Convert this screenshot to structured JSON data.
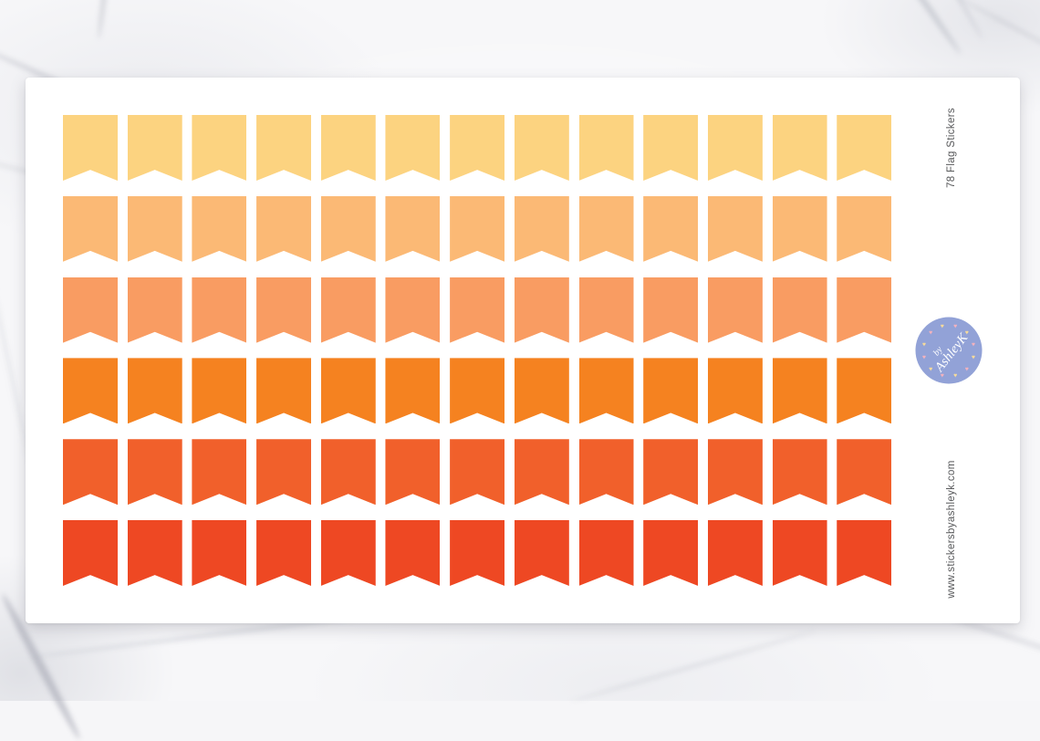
{
  "sheet": {
    "title": "78 Flag Stickers",
    "website": "www.stickersbyashleyk.com",
    "text_color": "#58595B",
    "background": "#FFFFFF"
  },
  "logo": {
    "prefix": "by",
    "name": "AshleyK",
    "circle_color": "#92A2D7",
    "text_color": "#FFFFFF",
    "heart_glyph": "♥",
    "heart_count": 12,
    "heart_colors": [
      "#F6DB9B",
      "#F3B2BE"
    ]
  },
  "stickers": {
    "shape": "flag",
    "columns": 13,
    "rows": 6,
    "total": 78,
    "row_colors": [
      "#FCD380",
      "#FBB975",
      "#F99C62",
      "#F58220",
      "#F1602B",
      "#EE4823"
    ]
  }
}
